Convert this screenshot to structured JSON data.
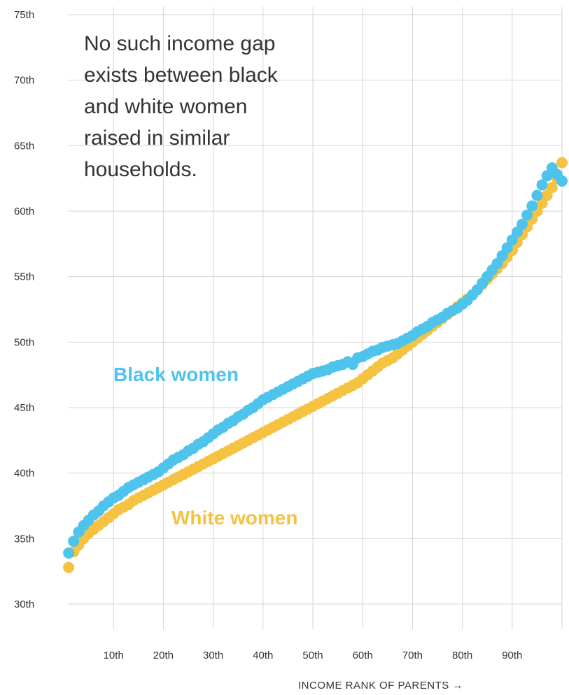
{
  "annotation": {
    "lines": [
      "No such income gap",
      "exists between black",
      "and white women",
      "raised in similar",
      "households."
    ]
  },
  "x_axis_title": "INCOME RANK OF PARENTS →",
  "chart_data": {
    "type": "scatter",
    "xlabel": "INCOME RANK OF PARENTS",
    "ylabel": "",
    "x_ticks": [
      10,
      20,
      30,
      40,
      50,
      60,
      70,
      80,
      90
    ],
    "x_tick_labels": [
      "10th",
      "20th",
      "30th",
      "40th",
      "50th",
      "60th",
      "70th",
      "80th",
      "90th"
    ],
    "y_ticks": [
      30,
      35,
      40,
      45,
      50,
      55,
      60,
      65,
      70,
      75
    ],
    "y_tick_labels": [
      "30th",
      "35th",
      "40th",
      "45th",
      "50th",
      "55th",
      "60th",
      "65th",
      "70th",
      "75th"
    ],
    "xlim": [
      0,
      100
    ],
    "ylim": [
      29,
      75
    ],
    "grid": true,
    "series": [
      {
        "name": "Black women",
        "color": "#4ec3ec",
        "x": [
          1,
          2,
          3,
          4,
          5,
          6,
          7,
          8,
          9,
          10,
          11,
          12,
          13,
          14,
          15,
          16,
          17,
          18,
          19,
          20,
          21,
          22,
          23,
          24,
          25,
          26,
          27,
          28,
          29,
          30,
          31,
          32,
          33,
          34,
          35,
          36,
          37,
          38,
          39,
          40,
          41,
          42,
          43,
          44,
          45,
          46,
          47,
          48,
          49,
          50,
          51,
          52,
          53,
          54,
          55,
          56,
          57,
          58,
          59,
          60,
          61,
          62,
          63,
          64,
          65,
          66,
          67,
          68,
          69,
          70,
          71,
          72,
          73,
          74,
          75,
          76,
          77,
          78,
          79,
          80,
          81,
          82,
          83,
          84,
          85,
          86,
          87,
          88,
          89,
          90,
          91,
          92,
          93,
          94,
          95,
          96,
          97,
          98,
          99,
          100
        ],
        "y": [
          33.9,
          34.8,
          35.5,
          36.0,
          36.4,
          36.8,
          37.1,
          37.5,
          37.8,
          38.1,
          38.3,
          38.6,
          38.9,
          39.1,
          39.3,
          39.5,
          39.7,
          39.9,
          40.1,
          40.4,
          40.7,
          41.0,
          41.2,
          41.4,
          41.7,
          41.9,
          42.2,
          42.4,
          42.7,
          43.0,
          43.3,
          43.5,
          43.8,
          44.0,
          44.3,
          44.5,
          44.8,
          45.0,
          45.3,
          45.6,
          45.8,
          46.0,
          46.2,
          46.4,
          46.6,
          46.8,
          47.0,
          47.2,
          47.4,
          47.6,
          47.7,
          47.8,
          47.9,
          48.1,
          48.2,
          48.3,
          48.5,
          48.3,
          48.8,
          48.9,
          49.1,
          49.3,
          49.4,
          49.6,
          49.7,
          49.8,
          49.9,
          50.1,
          50.3,
          50.5,
          50.8,
          51.0,
          51.2,
          51.5,
          51.7,
          51.9,
          52.2,
          52.4,
          52.6,
          52.9,
          53.2,
          53.6,
          54.0,
          54.5,
          55.0,
          55.5,
          56.0,
          56.6,
          57.2,
          57.8,
          58.4,
          59.0,
          59.7,
          60.4,
          61.2,
          62.0,
          62.7,
          63.3,
          62.8,
          62.3
        ]
      },
      {
        "name": "White women",
        "color": "#f5c242",
        "x": [
          1,
          2,
          3,
          4,
          5,
          6,
          7,
          8,
          9,
          10,
          11,
          12,
          13,
          14,
          15,
          16,
          17,
          18,
          19,
          20,
          21,
          22,
          23,
          24,
          25,
          26,
          27,
          28,
          29,
          30,
          31,
          32,
          33,
          34,
          35,
          36,
          37,
          38,
          39,
          40,
          41,
          42,
          43,
          44,
          45,
          46,
          47,
          48,
          49,
          50,
          51,
          52,
          53,
          54,
          55,
          56,
          57,
          58,
          59,
          60,
          61,
          62,
          63,
          64,
          65,
          66,
          67,
          68,
          69,
          70,
          71,
          72,
          73,
          74,
          75,
          76,
          77,
          78,
          79,
          80,
          81,
          82,
          83,
          84,
          85,
          86,
          87,
          88,
          89,
          90,
          91,
          92,
          93,
          94,
          95,
          96,
          97,
          98,
          99,
          100
        ],
        "y": [
          32.8,
          34.0,
          34.5,
          35.0,
          35.4,
          35.7,
          36.0,
          36.3,
          36.6,
          36.9,
          37.2,
          37.4,
          37.6,
          37.9,
          38.1,
          38.3,
          38.5,
          38.7,
          38.9,
          39.1,
          39.3,
          39.5,
          39.7,
          39.9,
          40.1,
          40.3,
          40.5,
          40.7,
          40.9,
          41.1,
          41.3,
          41.5,
          41.7,
          41.9,
          42.1,
          42.3,
          42.5,
          42.7,
          42.9,
          43.1,
          43.3,
          43.5,
          43.7,
          43.9,
          44.1,
          44.3,
          44.5,
          44.7,
          44.9,
          45.1,
          45.3,
          45.5,
          45.7,
          45.9,
          46.1,
          46.3,
          46.5,
          46.7,
          46.9,
          47.2,
          47.5,
          47.8,
          48.1,
          48.4,
          48.6,
          48.8,
          49.1,
          49.4,
          49.7,
          50.0,
          50.3,
          50.6,
          50.9,
          51.2,
          51.5,
          51.8,
          52.1,
          52.4,
          52.7,
          53.0,
          53.3,
          53.6,
          54.0,
          54.4,
          54.8,
          55.2,
          55.6,
          56.0,
          56.5,
          57.0,
          57.6,
          58.2,
          58.8,
          59.4,
          60.0,
          60.6,
          61.2,
          61.8,
          62.5,
          63.7
        ]
      }
    ],
    "series_labels": [
      {
        "text": "Black women",
        "series": "Black women"
      },
      {
        "text": "White women",
        "series": "White women"
      }
    ]
  }
}
